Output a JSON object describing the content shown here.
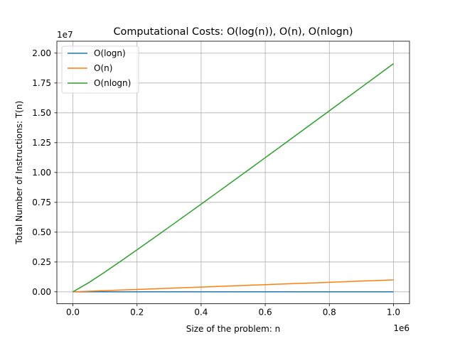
{
  "chart_data": {
    "type": "line",
    "title": "Computational Costs: O(log(n)), O(n), O(nlogn)",
    "xlabel": "Size of the problem: n",
    "ylabel": "Total Number of Instructions: T(n)",
    "x_offset_label": "1e6",
    "y_offset_label": "1e7",
    "xlim": [
      -50000,
      1050000
    ],
    "ylim": [
      -1000000,
      21000000
    ],
    "x_ticks": [
      0,
      0.2,
      0.4,
      0.6,
      0.8,
      1.0
    ],
    "x_tick_labels": [
      "0.0",
      "0.2",
      "0.4",
      "0.6",
      "0.8",
      "1.0"
    ],
    "y_ticks": [
      0,
      0.25,
      0.5,
      0.75,
      1.0,
      1.25,
      1.5,
      1.75,
      2.0
    ],
    "y_tick_labels": [
      "0.00",
      "0.25",
      "0.50",
      "0.75",
      "1.00",
      "1.25",
      "1.50",
      "1.75",
      "2.00"
    ],
    "grid": true,
    "legend": "upper left",
    "x": [
      1,
      50000,
      100000,
      150000,
      200000,
      250000,
      300000,
      350000,
      400000,
      450000,
      500000,
      550000,
      600000,
      650000,
      700000,
      750000,
      800000,
      850000,
      900000,
      950000,
      1000000
    ],
    "series": [
      {
        "name": "O(logn)",
        "color": "#1f77b4",
        "values": [
          0,
          15.6,
          16.6,
          17.2,
          17.6,
          17.9,
          18.2,
          18.4,
          18.6,
          18.8,
          18.9,
          19.1,
          19.2,
          19.3,
          19.4,
          19.5,
          19.6,
          19.7,
          19.8,
          19.9,
          19.9
        ]
      },
      {
        "name": "O(n)",
        "color": "#ff7f0e",
        "values": [
          1,
          50000,
          100000,
          150000,
          200000,
          250000,
          300000,
          350000,
          400000,
          450000,
          500000,
          550000,
          600000,
          650000,
          700000,
          750000,
          800000,
          850000,
          900000,
          950000,
          1000000
        ]
      },
      {
        "name": "O(nlogn)",
        "color": "#2ca02c",
        "values": [
          0,
          780482,
          1660964,
          2584474,
          3521928,
          4469209,
          5423642,
          6383771,
          7348728,
          8317724,
          9289783,
          10264685,
          11241914,
          12221291,
          13202450,
          14185130,
          15169200,
          16154500,
          17140918,
          18128300,
          19116000
        ]
      }
    ]
  }
}
